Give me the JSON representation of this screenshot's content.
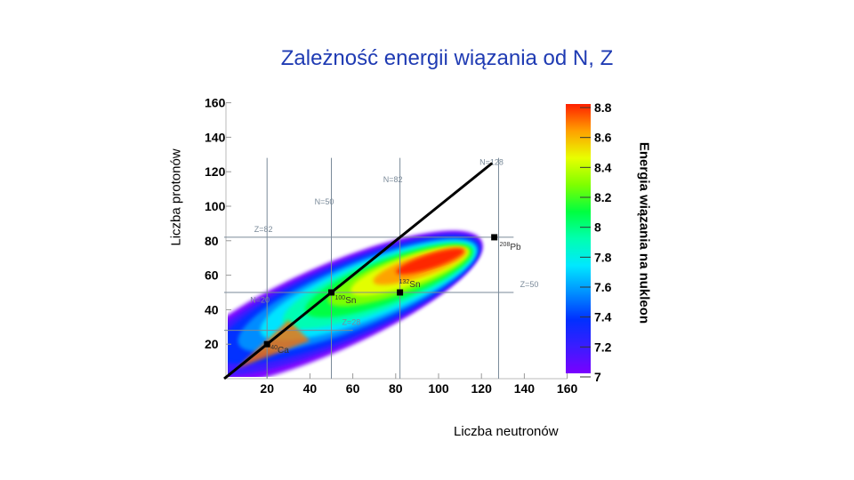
{
  "slide": {
    "title": "Zależność energii wiązania od N, Z"
  },
  "chart_data": {
    "type": "heatmap",
    "xlabel": "Liczba neutronów",
    "ylabel": "Liczba protonów",
    "xlim": [
      0,
      160
    ],
    "ylim": [
      0,
      160
    ],
    "xticks": [
      20,
      40,
      60,
      80,
      100,
      120,
      140,
      160
    ],
    "yticks": [
      20,
      40,
      60,
      80,
      100,
      120,
      140,
      160
    ],
    "colorbar": {
      "label": "Energia wiązania na nukleon",
      "range": [
        7,
        8.8
      ],
      "ticks": [
        "7",
        "7.2",
        "7.4",
        "7.6",
        "7.8",
        "8",
        "8.2",
        "8.4",
        "8.6",
        "8.8"
      ]
    },
    "reference_line": {
      "description_shown": "N = Z",
      "from": [
        0,
        0
      ],
      "to": [
        125,
        125
      ]
    },
    "magic_lines": [
      {
        "label": "N=20",
        "axis": "N",
        "value": 20
      },
      {
        "label": "N=50",
        "axis": "N",
        "value": 50
      },
      {
        "label": "N=82",
        "axis": "N",
        "value": 82
      },
      {
        "label": "N=128",
        "axis": "N",
        "value": 128
      },
      {
        "label": "Z=28",
        "axis": "Z",
        "value": 28
      },
      {
        "label": "Z=50",
        "axis": "Z",
        "value": 50
      },
      {
        "label": "Z=82",
        "axis": "Z",
        "value": 82
      }
    ],
    "nuclei": [
      {
        "label": "40Ca",
        "mass": "40",
        "symbol": "Ca",
        "N": 20,
        "Z": 20
      },
      {
        "label": "100Sn",
        "mass": "100",
        "symbol": "Sn",
        "N": 50,
        "Z": 50
      },
      {
        "label": "132Sn",
        "mass": "132",
        "symbol": "Sn",
        "N": 82,
        "Z": 50
      },
      {
        "label": "208Pb",
        "mass": "208",
        "symbol": "Pb",
        "N": 126,
        "Z": 82
      }
    ]
  },
  "colors": {
    "title": "#1f3bb3",
    "scale": [
      "#7a00ff",
      "#3a1dff",
      "#0030ff",
      "#0090ff",
      "#00e8ff",
      "#00ffb0",
      "#00ff40",
      "#7fff00",
      "#e8ff00",
      "#ffa000",
      "#ff2000"
    ]
  }
}
